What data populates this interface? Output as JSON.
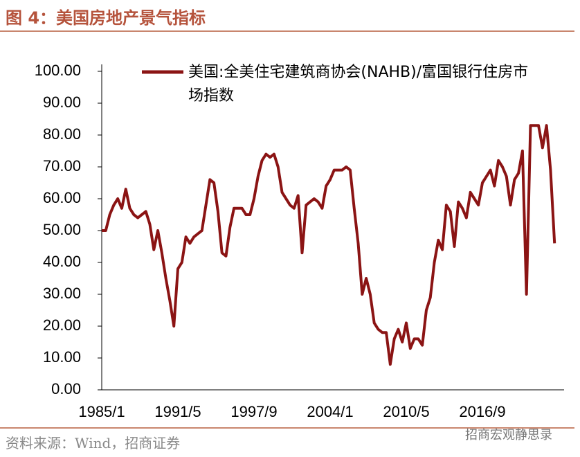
{
  "title": "图 4：美国房地产景气指标",
  "source": "资料来源：Wind，招商证券",
  "watermark": "招商宏观静思录",
  "chart_data": {
    "type": "line",
    "categories": [
      "1985/1",
      null,
      null,
      null,
      null,
      null,
      null,
      null,
      null,
      null,
      null,
      null,
      null,
      null,
      null,
      null,
      null,
      null,
      null,
      "1991/5",
      null,
      null,
      null,
      null,
      null,
      null,
      null,
      null,
      null,
      null,
      null,
      null,
      null,
      null,
      null,
      null,
      null,
      null,
      "1997/9",
      null,
      null,
      null,
      null,
      null,
      null,
      null,
      null,
      null,
      null,
      null,
      null,
      null,
      null,
      null,
      null,
      null,
      null,
      "2004/1",
      null,
      null,
      null,
      null,
      null,
      null,
      null,
      null,
      null,
      null,
      null,
      null,
      null,
      null,
      null,
      null,
      null,
      null,
      "2010/5",
      null,
      null,
      null,
      null,
      null,
      null,
      null,
      null,
      null,
      null,
      null,
      null,
      null,
      null,
      null,
      null,
      null,
      null,
      "2016/9",
      null,
      null,
      null,
      null,
      null,
      null,
      null,
      null,
      null,
      null,
      null,
      null,
      null,
      null,
      null,
      null,
      null,
      null
    ],
    "series": [
      {
        "name": "美国:全美住宅建筑商协会(NAHB)/富国银行住房市场指数",
        "color": "#8b1414",
        "values": [
          50,
          50,
          55,
          58,
          60,
          57,
          63,
          57,
          55,
          54,
          55,
          56,
          52,
          44,
          50,
          43,
          35,
          28,
          20,
          38,
          40,
          48,
          46,
          48,
          49,
          50,
          58,
          66,
          65,
          56,
          43,
          42,
          51,
          57,
          57,
          57,
          55,
          55,
          60,
          67,
          72,
          74,
          73,
          74,
          70,
          62,
          60,
          58,
          57,
          61,
          43,
          58,
          59,
          60,
          59,
          57,
          64,
          66,
          69,
          69,
          69,
          70,
          69,
          57,
          46,
          30,
          35,
          30,
          21,
          19,
          18,
          18,
          8,
          16,
          19,
          15,
          21,
          13,
          16,
          16,
          14,
          25,
          29,
          40,
          47,
          44,
          58,
          56,
          45,
          59,
          57,
          54,
          62,
          60,
          58,
          65,
          67,
          69,
          64,
          72,
          70,
          67,
          58,
          66,
          68,
          75,
          30,
          83,
          83,
          83,
          76,
          83,
          69,
          46
        ]
      }
    ],
    "ylim": [
      0,
      100
    ],
    "yticks": [
      {
        "value": 0,
        "label": "0.00"
      },
      {
        "value": 10,
        "label": "10.00"
      },
      {
        "value": 20,
        "label": "20.00"
      },
      {
        "value": 30,
        "label": "30.00"
      },
      {
        "value": 40,
        "label": "40.00"
      },
      {
        "value": 50,
        "label": "50.00"
      },
      {
        "value": 60,
        "label": "60.00"
      },
      {
        "value": 70,
        "label": "70.00"
      },
      {
        "value": 80,
        "label": "80.00"
      },
      {
        "value": 90,
        "label": "90.00"
      },
      {
        "value": 100,
        "label": "100.00"
      }
    ],
    "legend": "top-left"
  }
}
